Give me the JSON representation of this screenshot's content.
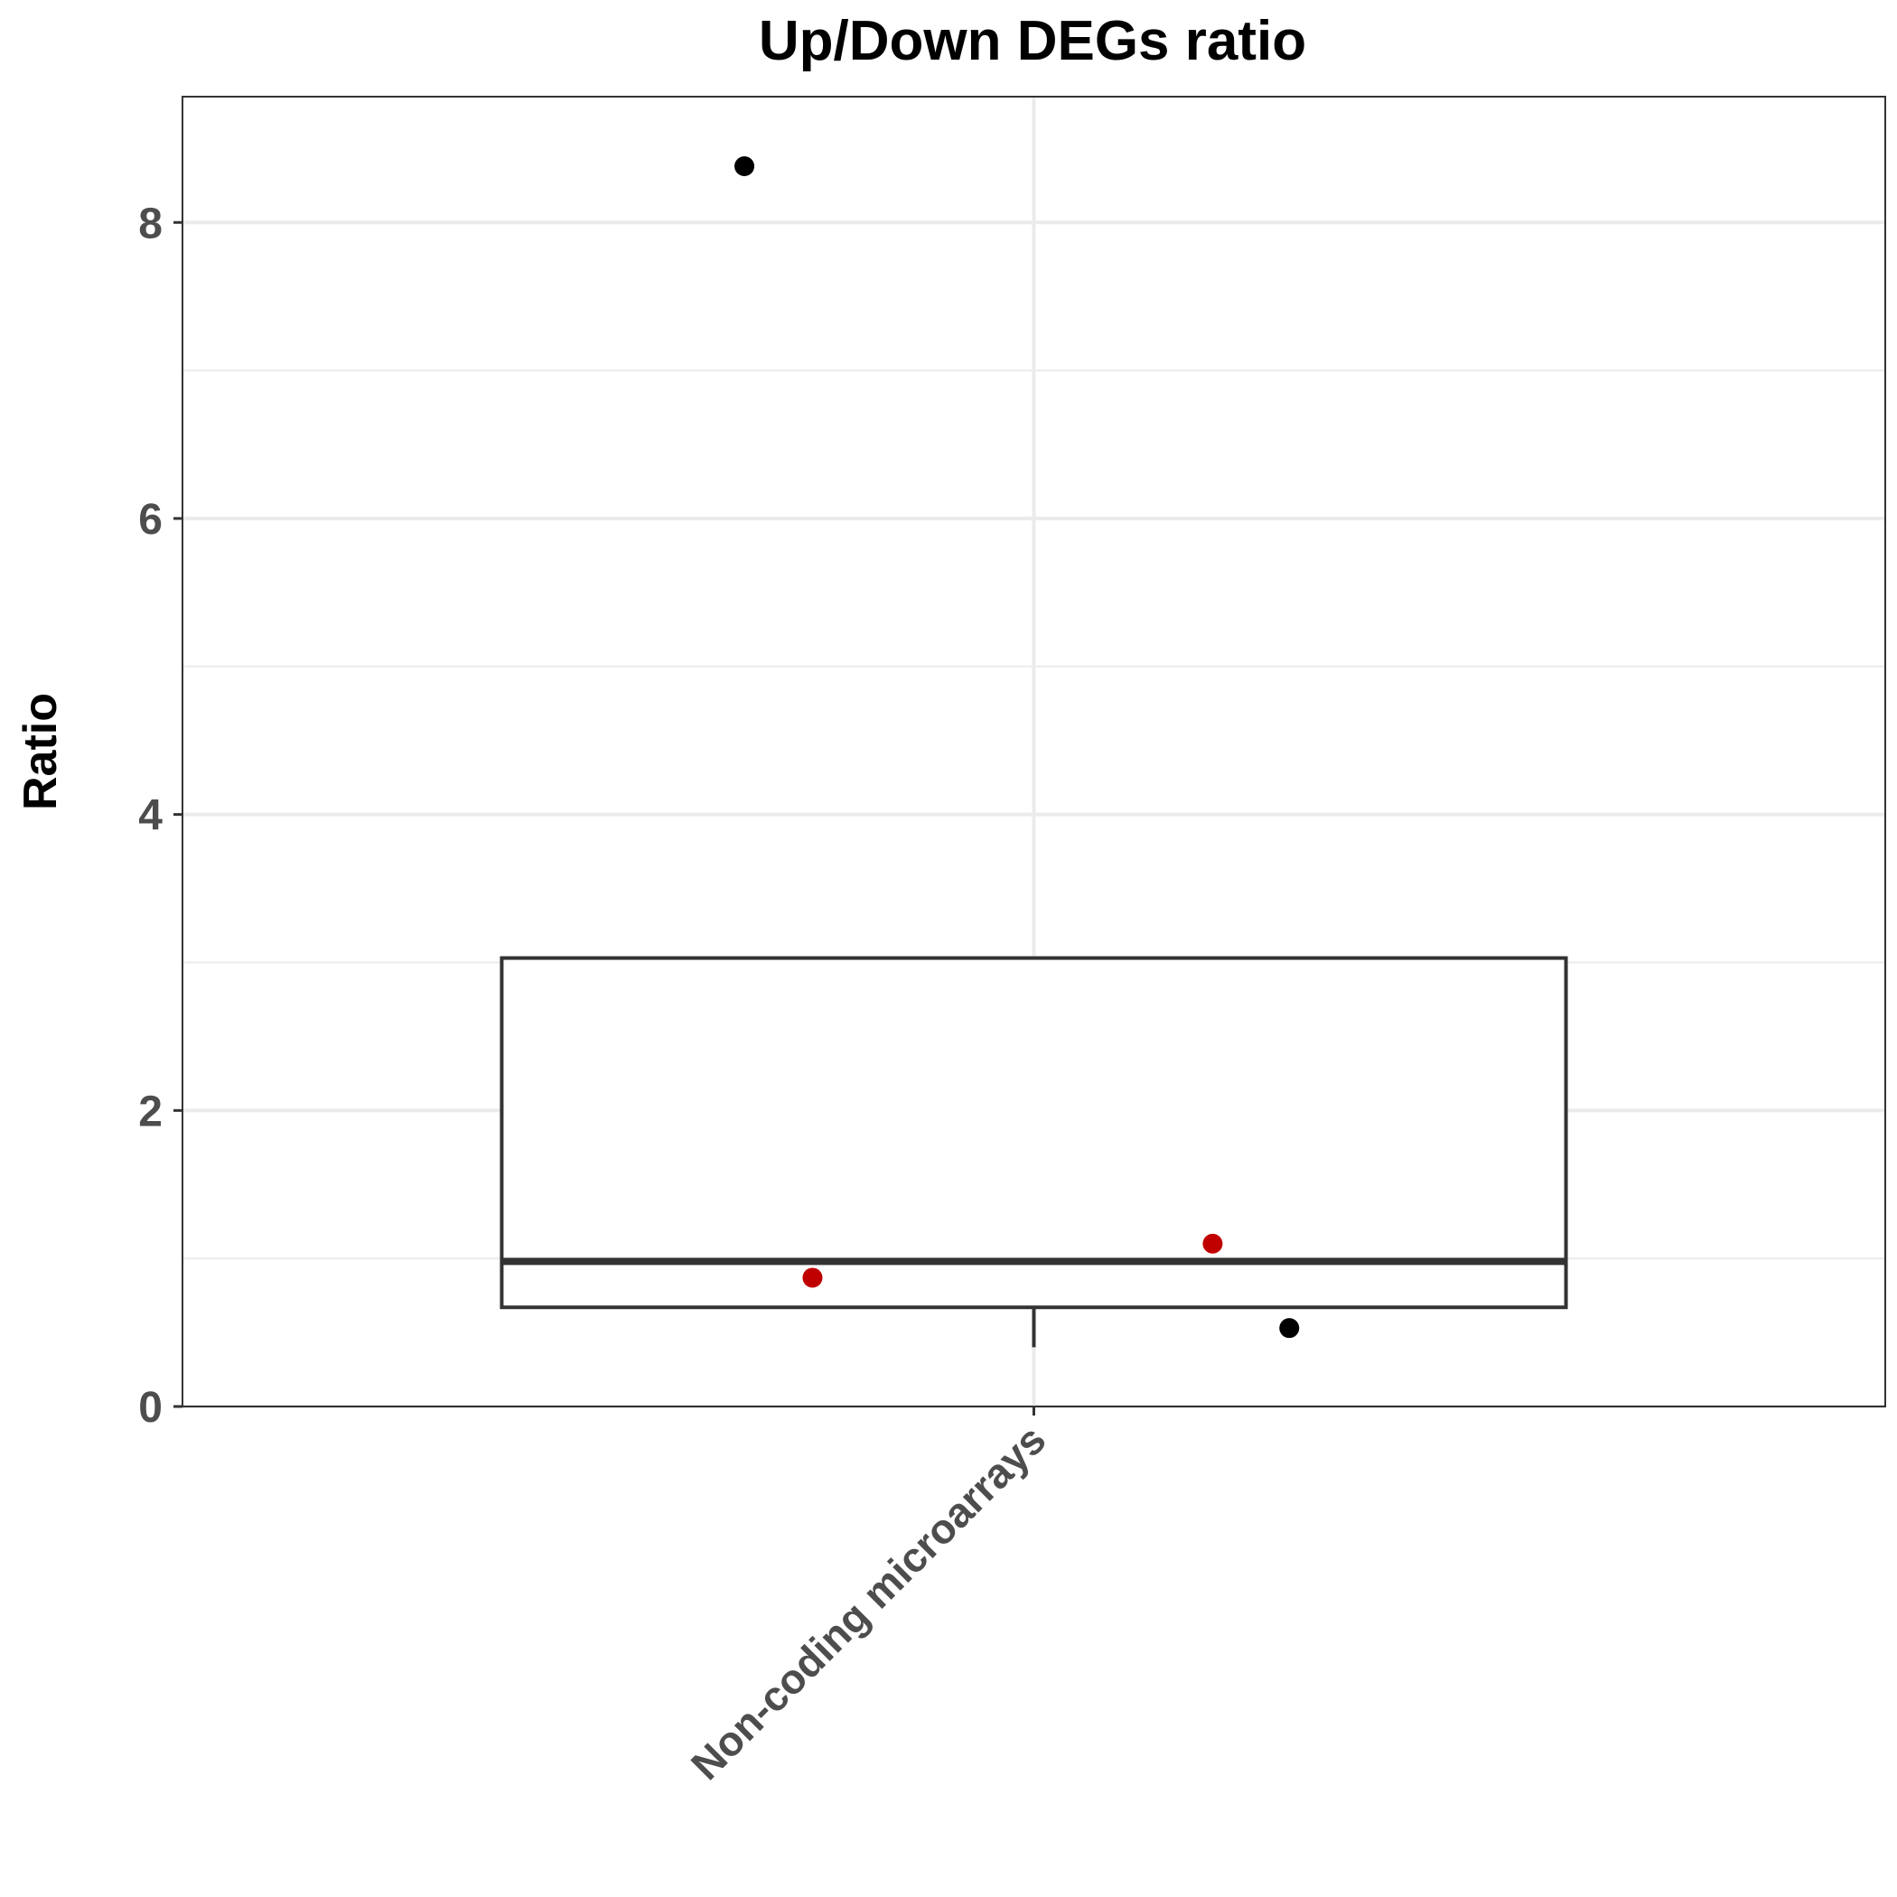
{
  "chart_data": {
    "type": "box",
    "title": "Up/Down DEGs ratio",
    "xlabel": "",
    "ylabel": "Ratio",
    "ylim": [
      0,
      8.85
    ],
    "y_ticks": [
      0,
      2,
      4,
      6,
      8
    ],
    "grid": true,
    "categories": [
      "Non-coding microarrays"
    ],
    "boxes": [
      {
        "category": "Non-coding microarrays",
        "q1": 0.67,
        "median": 0.98,
        "q3": 3.03,
        "whisker_low": 0.4,
        "whisker_high": 3.03
      }
    ],
    "points": [
      {
        "category": "Non-coding microarrays",
        "y": 8.38,
        "jitter": -0.17,
        "color": "#000000"
      },
      {
        "category": "Non-coding microarrays",
        "y": 1.1,
        "jitter": 0.105,
        "color": "#c00000"
      },
      {
        "category": "Non-coding microarrays",
        "y": 0.87,
        "jitter": -0.13,
        "color": "#c00000"
      },
      {
        "category": "Non-coding microarrays",
        "y": 0.53,
        "jitter": 0.15,
        "color": "#000000"
      }
    ]
  }
}
